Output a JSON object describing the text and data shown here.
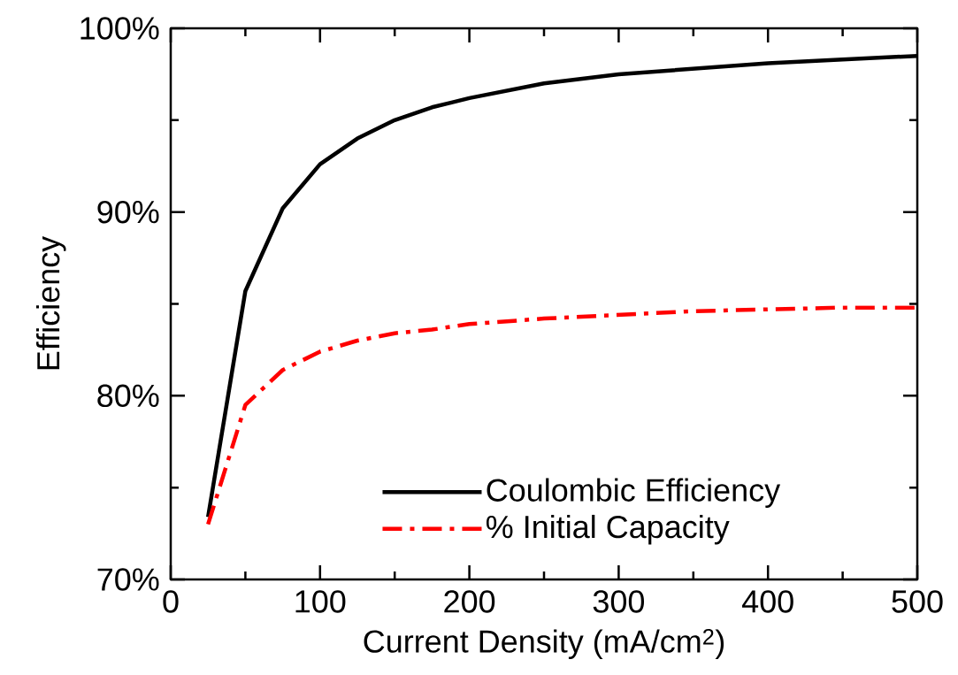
{
  "chart_data": {
    "type": "line",
    "xlabel": "Current Density (mA/cm$^{2}$)",
    "ylabel": "Efficiency",
    "x": [
      25,
      50,
      75,
      100,
      125,
      150,
      175,
      200,
      250,
      300,
      350,
      400,
      450,
      500
    ],
    "series": [
      {
        "name": "Coulombic Efficiency",
        "color": "#000000",
        "line_style": "solid",
        "values": [
          73.4,
          85.7,
          90.2,
          92.6,
          94.0,
          95.0,
          95.7,
          96.2,
          97.0,
          97.5,
          97.8,
          98.1,
          98.3,
          98.5
        ]
      },
      {
        "name": "% Initial Capacity",
        "color": "#ff0000",
        "line_style": "dashdot",
        "values": [
          73.0,
          79.5,
          81.4,
          82.4,
          83.0,
          83.4,
          83.6,
          83.9,
          84.2,
          84.4,
          84.6,
          84.7,
          84.8,
          84.8
        ]
      }
    ],
    "xlim": [
      0,
      500
    ],
    "ylim": [
      70,
      100
    ],
    "xticks": [
      0,
      {
        "value": 50,
        "label": null
      },
      100,
      {
        "value": 150,
        "label": null
      },
      200,
      {
        "value": 250,
        "label": null
      },
      300,
      {
        "value": 350,
        "label": null
      },
      400,
      {
        "value": 450,
        "label": null
      },
      500
    ],
    "yticks": [
      {
        "value": 70,
        "label": "70%"
      },
      {
        "value": 75,
        "label": null
      },
      {
        "value": 80,
        "label": "80%"
      },
      {
        "value": 85,
        "label": null
      },
      {
        "value": 90,
        "label": "90%"
      },
      {
        "value": 95,
        "label": null
      },
      {
        "value": 100,
        "label": "100%"
      }
    ],
    "legend": "bottom",
    "marker": "none"
  }
}
